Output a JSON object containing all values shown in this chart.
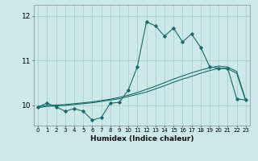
{
  "title": "",
  "xlabel": "Humidex (Indice chaleur)",
  "ylabel": "",
  "bg_color": "#cce8e8",
  "line_color": "#1a6b6b",
  "grid_color": "#aad0d0",
  "yticks": [
    10,
    11,
    12
  ],
  "ytick_labels": [
    "10",
    "11",
    "12"
  ],
  "xlim": [
    -0.5,
    23.5
  ],
  "ylim": [
    9.55,
    12.25
  ],
  "line1_x": [
    0,
    1,
    2,
    3,
    4,
    5,
    6,
    7,
    8,
    9,
    10,
    11,
    12,
    13,
    14,
    15,
    16,
    17,
    18,
    19,
    20,
    21,
    22,
    23
  ],
  "line1_y": [
    9.97,
    10.05,
    9.97,
    9.87,
    9.93,
    9.87,
    9.67,
    9.73,
    10.05,
    10.07,
    10.35,
    10.87,
    11.87,
    11.78,
    11.55,
    11.73,
    11.42,
    11.6,
    11.3,
    10.87,
    10.83,
    10.83,
    10.15,
    10.12
  ],
  "line2_x": [
    0,
    1,
    2,
    3,
    4,
    5,
    6,
    7,
    8,
    9,
    10,
    11,
    12,
    13,
    14,
    15,
    16,
    17,
    18,
    19,
    20,
    21,
    22,
    23
  ],
  "line2_y": [
    9.97,
    10.0,
    10.01,
    10.02,
    10.04,
    10.06,
    10.08,
    10.11,
    10.14,
    10.18,
    10.23,
    10.29,
    10.36,
    10.43,
    10.51,
    10.59,
    10.66,
    10.73,
    10.79,
    10.84,
    10.88,
    10.86,
    10.76,
    10.12
  ],
  "line3_x": [
    0,
    1,
    2,
    3,
    4,
    5,
    6,
    7,
    8,
    9,
    10,
    11,
    12,
    13,
    14,
    15,
    16,
    17,
    18,
    19,
    20,
    21,
    22,
    23
  ],
  "line3_y": [
    9.95,
    9.98,
    9.99,
    10.0,
    10.02,
    10.04,
    10.06,
    10.09,
    10.12,
    10.15,
    10.2,
    10.25,
    10.3,
    10.37,
    10.44,
    10.52,
    10.59,
    10.65,
    10.72,
    10.78,
    10.83,
    10.82,
    10.72,
    10.1
  ],
  "xlabel_fontsize": 6.5,
  "ytick_fontsize": 6.5,
  "xtick_fontsize": 5.0
}
